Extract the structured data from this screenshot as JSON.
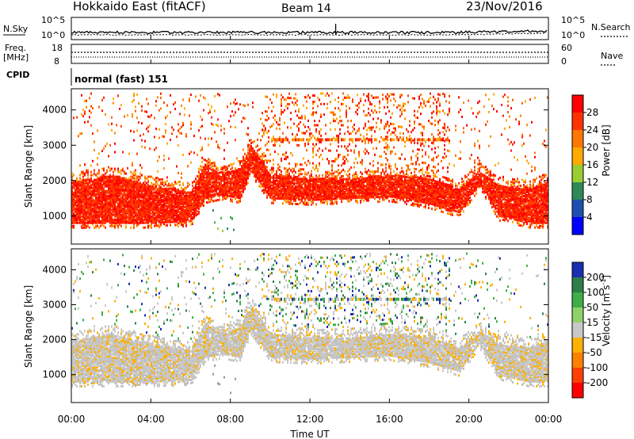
{
  "header": {
    "title": "Hokkaido East (fitACF)",
    "beam": "Beam 14",
    "date": "23/Nov/2016"
  },
  "top_panels": {
    "nsky_label": "N.Sky",
    "nsearch_label": "N.Search",
    "nsky_ticks": [
      "10^5",
      "10^0"
    ],
    "nsearch_ticks": [
      "10^5",
      "10^0"
    ],
    "freq_label_1": "Freq.",
    "freq_label_2": "[MHz]",
    "freq_ticks": [
      "18",
      "8"
    ],
    "nave_label": "Nave",
    "nave_ticks": [
      "60",
      "0"
    ],
    "cpid_label": "CPID",
    "cpid_text": "normal (fast) 151"
  },
  "chart_data": [
    {
      "type": "heatmap",
      "parameter": "Power",
      "ylabel": "Slant Range [km]",
      "xlabel": "",
      "colorbar_label": "Power [dB]",
      "colorbar_ticks": [
        "28",
        "24",
        "20",
        "16",
        "12",
        "8",
        "4"
      ],
      "colorbar_colors": [
        "#ff0000",
        "#ff3300",
        "#ff7700",
        "#ffaa00",
        "#9acd32",
        "#2e8b57",
        "#1e4fb0",
        "#0000ff"
      ],
      "x_ticks": [
        "00:00",
        "04:00",
        "08:00",
        "12:00",
        "16:00",
        "20:00",
        "00:00"
      ],
      "y_ticks": [
        "1000",
        "2000",
        "3000",
        "4000"
      ],
      "ylim": [
        200,
        4600
      ],
      "xlim_hours": [
        0,
        24
      ],
      "echo_band": {
        "hours": [
          0,
          2,
          4,
          6,
          6.7,
          7.5,
          8.5,
          9,
          10,
          12,
          14,
          16,
          18,
          19.5,
          20.5,
          21.5,
          23,
          24
        ],
        "lower_km": [
          800,
          800,
          800,
          850,
          1500,
          1600,
          1500,
          2300,
          1500,
          1450,
          1500,
          1550,
          1350,
          1100,
          1900,
          1000,
          800,
          800
        ],
        "upper_km": [
          2000,
          2200,
          1900,
          1700,
          2500,
          2200,
          2400,
          3050,
          2200,
          2100,
          2100,
          2200,
          2100,
          1800,
          2300,
          1900,
          1800,
          2000
        ]
      }
    },
    {
      "type": "heatmap",
      "parameter": "Velocity",
      "ylabel": "Slant Range [km]",
      "xlabel": "Time UT",
      "colorbar_label": "Velocity [m s^-1]",
      "colorbar_ticks": [
        "200",
        "100",
        "50",
        "15",
        "-15",
        "-50",
        "-100",
        "-200"
      ],
      "colorbar_colors": [
        "#1a2fb0",
        "#2e7d4a",
        "#3fae49",
        "#8fd16a",
        "#c8c8c8",
        "#ffb000",
        "#ff8000",
        "#ff4000",
        "#ff0000"
      ],
      "x_ticks": [
        "00:00",
        "04:00",
        "08:00",
        "12:00",
        "16:00",
        "20:00",
        "00:00"
      ],
      "y_ticks": [
        "1000",
        "2000",
        "3000",
        "4000"
      ],
      "ylim": [
        200,
        4600
      ],
      "xlim_hours": [
        0,
        24
      ]
    }
  ]
}
